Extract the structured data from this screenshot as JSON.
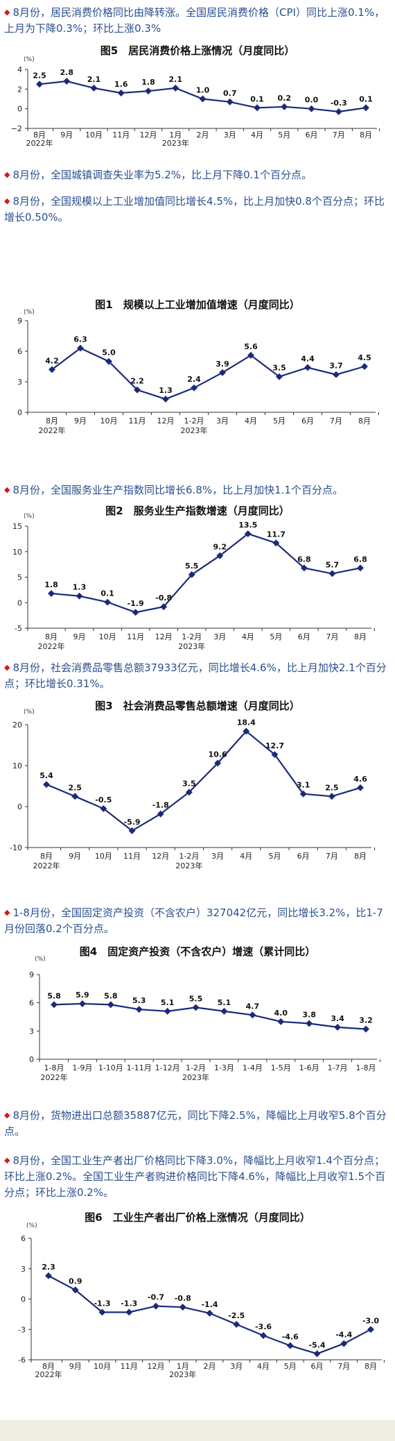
{
  "sections": [
    {
      "bullet": "◆",
      "text": "8月份，居民消费价格同比由降转涨。全国居民消费价格（CPI）同比上涨0.1%，上月为下降0.3%；环比上涨0.3%"
    },
    {
      "bullet": "◆",
      "text": "8月份，全国城镇调查失业率为5.2%，比上月下降0.1个百分点。"
    },
    {
      "bullet": "◆",
      "text": "8月份，全国规模以上工业增加值同比增长4.5%，比上月加快0.8个百分点；环比增长0.50%。"
    },
    {
      "bullet": "◆",
      "text": "8月份，全国服务业生产指数同比增长6.8%，比上月加快1.1个百分点。"
    },
    {
      "bullet": "◆",
      "text": "8月份，社会消费品零售总额37933亿元，同比增长4.6%，比上月加快2.1个百分点；环比增长0.31%。"
    },
    {
      "bullet": "◆",
      "text": "1-8月份，全国固定资产投资（不含农户）327042亿元，同比增长3.2%，比1-7月份回落0.2个百分点。"
    },
    {
      "bullet": "◆",
      "text": "8月份，货物进出口总额35887亿元，同比下降2.5%，降幅比上月收窄5.8个百分点。"
    },
    {
      "bullet": "◆",
      "text": "8月份，全国工业生产者出厂价格同比下降3.0%，降幅比上月收窄1.4个百分点；环比上涨0.2%。全国工业生产者购进价格同比下降4.6%，降幅比上月收窄1.5个百分点；环比上涨0.2%。"
    }
  ],
  "colors": {
    "line": "#1a2a7a",
    "text": "#2a4f8f",
    "bullet": "#d21b1b"
  },
  "chart_data": [
    {
      "type": "line",
      "title": "图5　居民消费价格上涨情况（月度同比）",
      "unit": "(%)",
      "categories": [
        "8月",
        "9月",
        "10月",
        "11月",
        "12月",
        "1月",
        "2月",
        "3月",
        "4月",
        "5月",
        "6月",
        "7月",
        "8月"
      ],
      "year_labels": [
        {
          "index": 0,
          "text": "2022年"
        },
        {
          "index": 5,
          "text": "2023年"
        }
      ],
      "values": [
        2.5,
        2.8,
        2.1,
        1.6,
        1.8,
        2.1,
        1.0,
        0.7,
        0.1,
        0.2,
        0.0,
        -0.3,
        0.1
      ],
      "labels": [
        "2.5",
        "2.8",
        "2.1",
        "1.6",
        "1.8",
        "2.1",
        "1.0",
        "0.7",
        "0.1",
        "0.2",
        "0.0",
        "-0.3",
        "0.1"
      ],
      "ylim": [
        -2,
        4
      ],
      "yticks": [
        -2,
        0,
        2,
        4
      ],
      "yticklabels": [
        "−2",
        "0",
        "2",
        "4"
      ]
    },
    {
      "type": "line",
      "title": "图1　规模以上工业增加值增速（月度同比）",
      "unit": "(%)",
      "categories": [
        "8月",
        "9月",
        "10月",
        "11月",
        "12月",
        "1-2月",
        "3月",
        "4月",
        "5月",
        "6月",
        "7月",
        "8月"
      ],
      "year_labels": [
        {
          "index": 0,
          "text": "2022年"
        },
        {
          "index": 5,
          "text": "2023年"
        }
      ],
      "values": [
        4.2,
        6.3,
        5.0,
        2.2,
        1.3,
        2.4,
        3.9,
        5.6,
        3.5,
        4.4,
        3.7,
        4.5
      ],
      "labels": [
        "4.2",
        "6.3",
        "5.0",
        "2.2",
        "1.3",
        "2.4",
        "3.9",
        "5.6",
        "3.5",
        "4.4",
        "3.7",
        "4.5"
      ],
      "ylim": [
        0,
        9
      ],
      "yticks": [
        0,
        3,
        6,
        9
      ],
      "yticklabels": [
        "0",
        "3",
        "6",
        "9"
      ]
    },
    {
      "type": "line",
      "title": "图2　服务业生产指数增速（月度同比）",
      "unit": "(%)",
      "categories": [
        "8月",
        "9月",
        "10月",
        "11月",
        "12月",
        "1-2月",
        "3月",
        "4月",
        "5月",
        "6月",
        "7月",
        "8月"
      ],
      "year_labels": [
        {
          "index": 0,
          "text": "2022年"
        },
        {
          "index": 5,
          "text": "2023年"
        }
      ],
      "values": [
        1.8,
        1.3,
        0.1,
        -1.9,
        -0.8,
        5.5,
        9.2,
        13.5,
        11.7,
        6.8,
        5.7,
        6.8
      ],
      "labels": [
        "1.8",
        "1.3",
        "0.1",
        "-1.9",
        "-0.8",
        "5.5",
        "9.2",
        "13.5",
        "11.7",
        "6.8",
        "5.7",
        "6.8"
      ],
      "ylim": [
        -5,
        15
      ],
      "yticks": [
        -5,
        0,
        5,
        10,
        15
      ],
      "yticklabels": [
        "-5",
        "0",
        "5",
        "10",
        "15"
      ]
    },
    {
      "type": "line",
      "title": "图3　社会消费品零售总额增速（月度同比）",
      "unit": "(%)",
      "categories": [
        "8月",
        "9月",
        "10月",
        "11月",
        "12月",
        "1-2月",
        "3月",
        "4月",
        "5月",
        "6月",
        "7月",
        "8月"
      ],
      "year_labels": [
        {
          "index": 0,
          "text": "2022年"
        },
        {
          "index": 5,
          "text": "2023年"
        }
      ],
      "values": [
        5.4,
        2.5,
        -0.5,
        -5.9,
        -1.8,
        3.5,
        10.6,
        18.4,
        12.7,
        3.1,
        2.5,
        4.6
      ],
      "labels": [
        "5.4",
        "2.5",
        "-0.5",
        "-5.9",
        "-1.8",
        "3.5",
        "10.6",
        "18.4",
        "12.7",
        "3.1",
        "2.5",
        "4.6"
      ],
      "ylim": [
        -10,
        20
      ],
      "yticks": [
        -10,
        0,
        10,
        20
      ],
      "yticklabels": [
        "-10",
        "0",
        "10",
        "20"
      ]
    },
    {
      "type": "line",
      "title": "图4　固定资产投资（不含农户）增速（累计同比）",
      "unit": "(%)",
      "categories": [
        "1-8月",
        "1-9月",
        "1-10月",
        "1-11月",
        "1-12月",
        "1-2月",
        "1-3月",
        "1-4月",
        "1-5月",
        "1-6月",
        "1-7月",
        "1-8月"
      ],
      "year_labels": [
        {
          "index": 0,
          "text": "2022年"
        },
        {
          "index": 5,
          "text": "2023年"
        }
      ],
      "values": [
        5.8,
        5.9,
        5.8,
        5.3,
        5.1,
        5.5,
        5.1,
        4.7,
        4.0,
        3.8,
        3.4,
        3.2
      ],
      "labels": [
        "5.8",
        "5.9",
        "5.8",
        "5.3",
        "5.1",
        "5.5",
        "5.1",
        "4.7",
        "4.0",
        "3.8",
        "3.4",
        "3.2"
      ],
      "ylim": [
        0,
        9
      ],
      "yticks": [
        0,
        3,
        6,
        9
      ],
      "yticklabels": [
        "0",
        "3",
        "6",
        "9"
      ]
    },
    {
      "type": "line",
      "title": "图6　工业生产者出厂价格上涨情况（月度同比）",
      "unit": "(%)",
      "categories": [
        "8月",
        "9月",
        "10月",
        "11月",
        "12月",
        "1月",
        "2月",
        "3月",
        "4月",
        "5月",
        "6月",
        "7月",
        "8月"
      ],
      "year_labels": [
        {
          "index": 0,
          "text": "2022年"
        },
        {
          "index": 5,
          "text": "2023年"
        }
      ],
      "values": [
        2.3,
        0.9,
        -1.3,
        -1.3,
        -0.7,
        -0.8,
        -1.4,
        -2.5,
        -3.6,
        -4.6,
        -5.4,
        -4.4,
        -3.0
      ],
      "labels": [
        "2.3",
        "0.9",
        "-1.3",
        "-1.3",
        "-0.7",
        "-0.8",
        "-1.4",
        "-2.5",
        "-3.6",
        "-4.6",
        "-5.4",
        "-4.4",
        "-3.0"
      ],
      "ylim": [
        -6,
        6
      ],
      "yticks": [
        -6,
        -3,
        0,
        3,
        6
      ],
      "yticklabels": [
        "-6",
        "-3",
        "0",
        "3",
        "6"
      ]
    }
  ]
}
